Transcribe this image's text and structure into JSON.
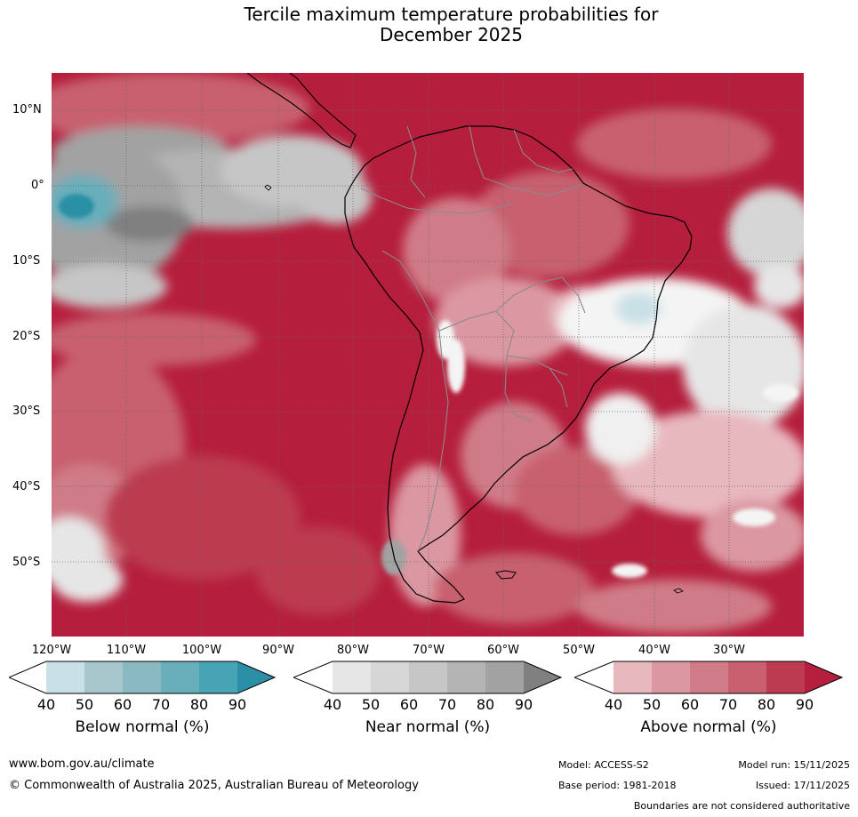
{
  "title": {
    "line1": "Tercile maximum temperature probabilities for",
    "line2": "December 2025"
  },
  "map": {
    "latitude_labels": [
      "10°N",
      "0°",
      "10°S",
      "20°S",
      "30°S",
      "40°S",
      "50°S"
    ],
    "longitude_labels": [
      "120°W",
      "110°W",
      "100°W",
      "90°W",
      "80°W",
      "70°W",
      "60°W",
      "50°W",
      "40°W",
      "30°W"
    ]
  },
  "colorbars": [
    {
      "name": "below",
      "title": "Below normal (%)",
      "ticks": [
        "40",
        "50",
        "60",
        "70",
        "80",
        "90"
      ],
      "colors": [
        "#ffffff",
        "#c8e0e6",
        "#a7c7cd",
        "#8ab9c2",
        "#69aebb",
        "#47a4b5",
        "#2b90a5"
      ]
    },
    {
      "name": "near",
      "title": "Near normal (%)",
      "ticks": [
        "40",
        "50",
        "60",
        "70",
        "80",
        "90"
      ],
      "colors": [
        "#ffffff",
        "#e6e6e6",
        "#d6d6d6",
        "#c6c6c6",
        "#b4b4b4",
        "#a2a2a2",
        "#808080"
      ]
    },
    {
      "name": "above",
      "title": "Above normal (%)",
      "ticks": [
        "40",
        "50",
        "60",
        "70",
        "80",
        "90"
      ],
      "colors": [
        "#ffffff",
        "#e8b8bf",
        "#db98a2",
        "#d07c88",
        "#c8606f",
        "#bc3b50",
        "#b51e3c"
      ]
    }
  ],
  "footer": {
    "website": "www.bom.gov.au/climate",
    "copyright": "© Commonwealth of Australia 2025, Australian Bureau of Meteorology",
    "model": "Model: ACCESS-S2",
    "model_run": "Model run: 15/11/2025",
    "base_period": "Base period: 1981-2018",
    "issued": "Issued: 17/11/2025",
    "disclaimer": "Boundaries are not considered authoritative"
  }
}
